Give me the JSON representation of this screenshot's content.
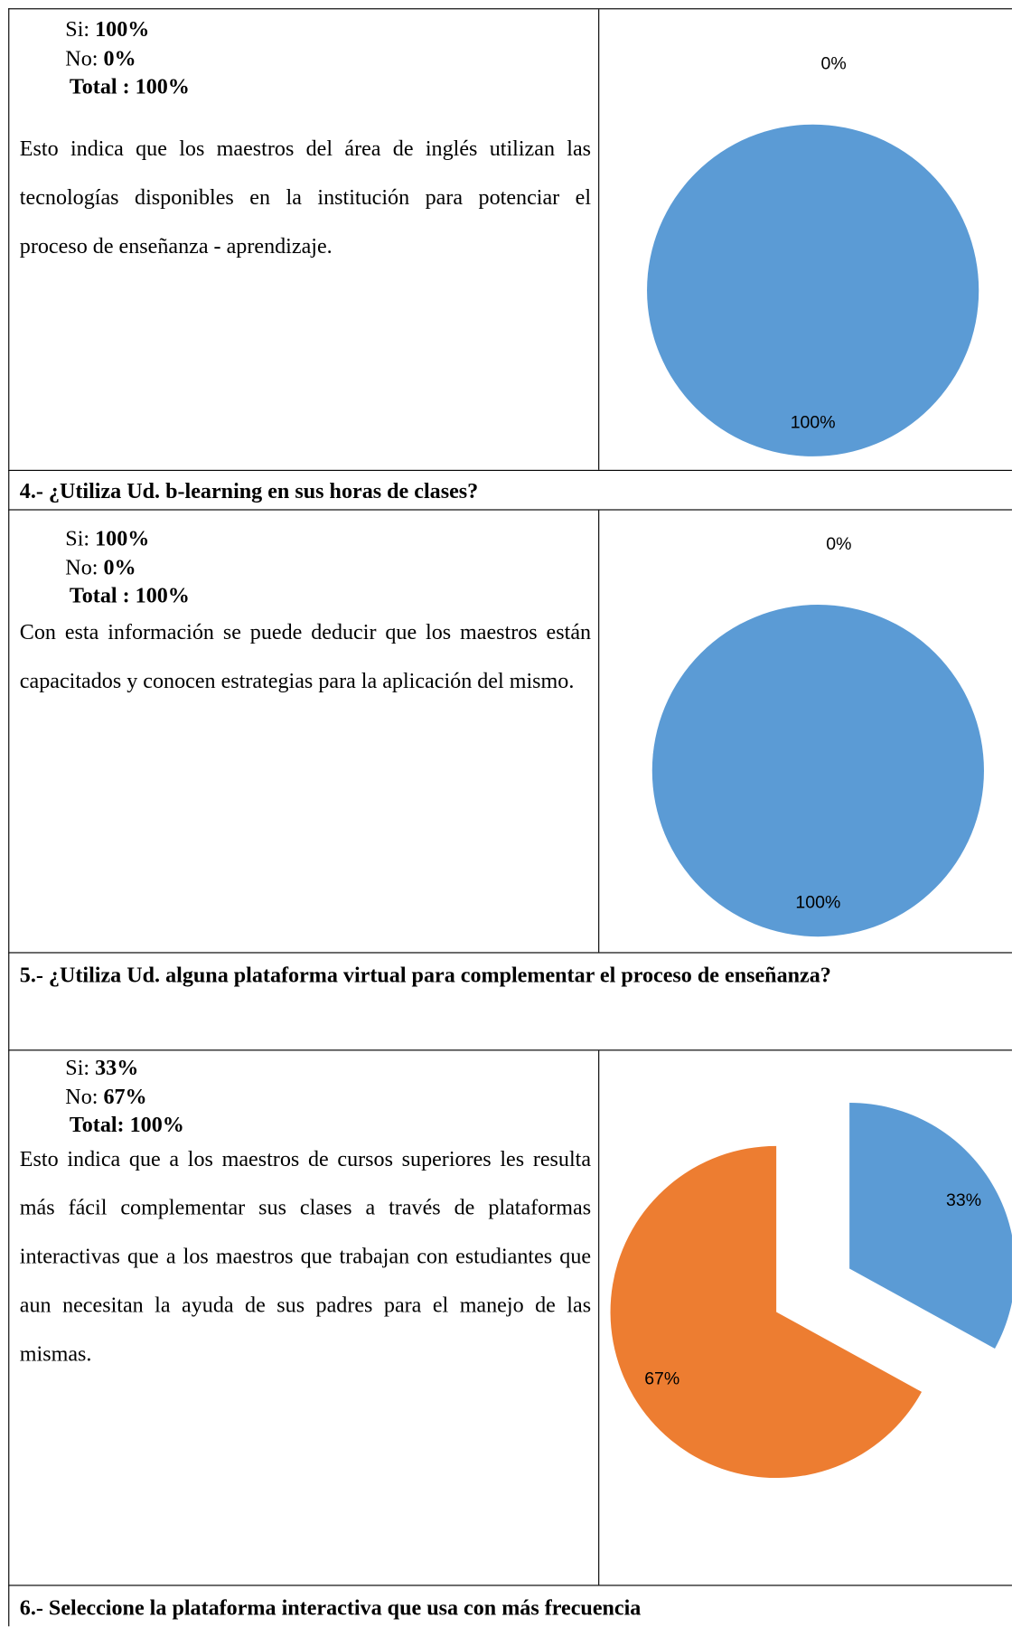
{
  "rows": [
    {
      "stats": [
        {
          "label": "Si:",
          "value": "100%"
        },
        {
          "label": "No:",
          "value": "0%"
        },
        {
          "label": "Total :",
          "value": "100%"
        }
      ],
      "text": "Esto indica que los maestros del área de inglés utilizan las tecnologías disponibles en la institución para potenciar el proceso de enseñanza - aprendizaje.",
      "chart": {
        "type": "pie",
        "values": [
          100,
          0
        ],
        "value_labels": [
          "100%",
          "0%"
        ],
        "colors": [
          "#5b9bd5",
          "#ed7d31"
        ]
      }
    },
    {
      "question": "4.- ¿Utiliza Ud. b-learning en sus horas de clases?"
    },
    {
      "stats": [
        {
          "label": "Si:",
          "value": "100%"
        },
        {
          "label": "No:",
          "value": "0%"
        },
        {
          "label": "Total :",
          "value": "100%"
        }
      ],
      "text": "Con esta información se puede deducir que los maestros están capacitados y conocen estrategias para la aplicación del mismo.",
      "chart": {
        "type": "pie",
        "values": [
          100,
          0
        ],
        "value_labels": [
          "100%",
          "0%"
        ],
        "colors": [
          "#5b9bd5",
          "#ed7d31"
        ]
      }
    },
    {
      "question": "5.- ¿Utiliza Ud. alguna plataforma virtual para complementar el proceso de enseñanza?"
    },
    {
      "stats": [
        {
          "label": "Si:",
          "value": "33%"
        },
        {
          "label": "No:",
          "value": "67%"
        },
        {
          "label": "Total:",
          "value": "100%"
        }
      ],
      "text": "Esto indica que a los maestros de cursos superiores les resulta más fácil complementar sus clases a través de plataformas interactivas que a los maestros que trabajan con estudiantes que aun necesitan la ayuda de sus padres para el manejo de las mismas.",
      "chart": {
        "type": "pie",
        "values": [
          33,
          67
        ],
        "value_labels": [
          "33%",
          "67%"
        ],
        "colors": [
          "#5b9bd5",
          "#ed7d31"
        ],
        "exploded": true
      }
    },
    {
      "question": "6.- Seleccione la plataforma interactiva que usa con más frecuencia"
    }
  ]
}
